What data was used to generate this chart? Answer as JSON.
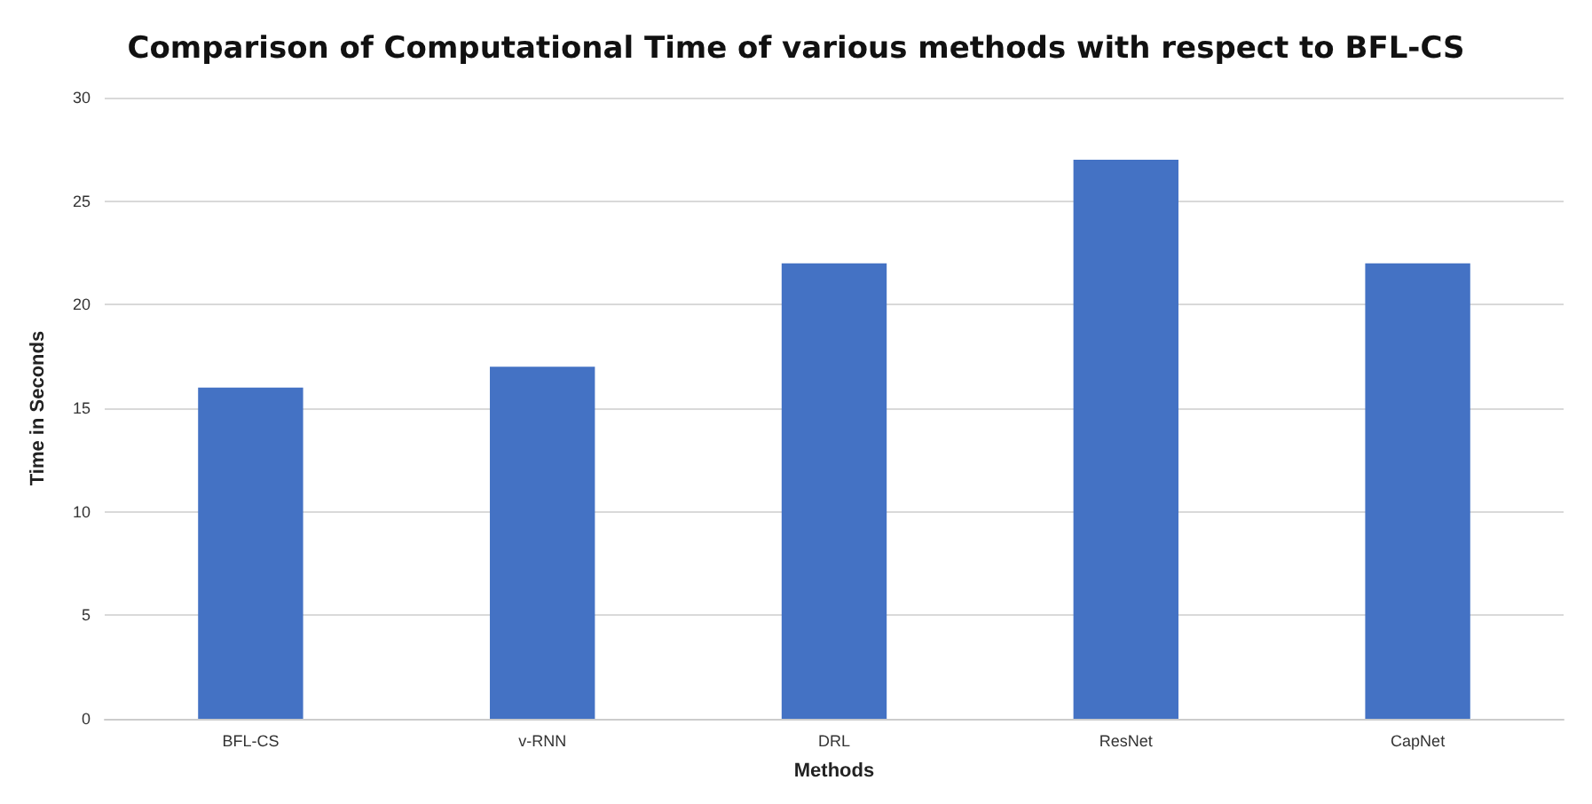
{
  "chart_data": {
    "type": "bar",
    "title": "Comparison of Computational Time of various methods with respect to BFL-CS",
    "xlabel": "Methods",
    "ylabel": "Time in Seconds",
    "categories": [
      "BFL-CS",
      "v-RNN",
      "DRL",
      "ResNet",
      "CapNet"
    ],
    "values": [
      16,
      17,
      22,
      27,
      22
    ],
    "color": "#4472c4",
    "ylim": [
      0,
      30
    ],
    "yticks": [
      0,
      5,
      10,
      15,
      20,
      25,
      30
    ],
    "grid": "y"
  }
}
